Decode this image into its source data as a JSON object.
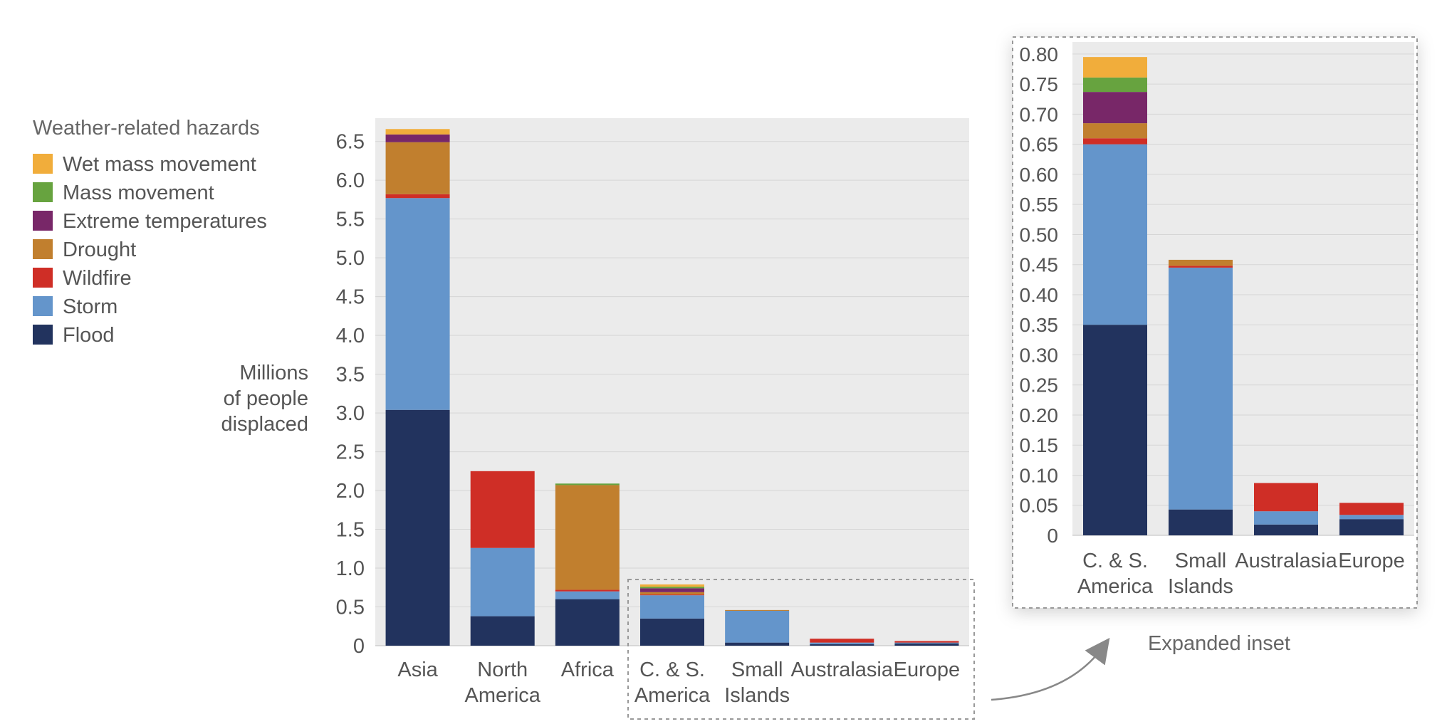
{
  "legend": {
    "title": "Weather-related hazards",
    "items": [
      {
        "label": "Wet mass movement",
        "color": "#f1ad3b"
      },
      {
        "label": "Mass movement",
        "color": "#67a33f"
      },
      {
        "label": "Extreme temperatures",
        "color": "#782768"
      },
      {
        "label": "Drought",
        "color": "#c17f2e"
      },
      {
        "label": "Wildfire",
        "color": "#cf2e26"
      },
      {
        "label": "Storm",
        "color": "#6495cb"
      },
      {
        "label": "Flood",
        "color": "#22335e"
      }
    ]
  },
  "ylabel_lines": [
    "Millions",
    "of people",
    "displaced"
  ],
  "inset_caption": "Expanded inset",
  "chart_data": [
    {
      "type": "bar",
      "stacked": true,
      "title": "",
      "ylabel": "Millions of people displaced",
      "ylim": [
        0,
        6.8
      ],
      "yticks": [
        "0",
        "0.5",
        "1.0",
        "1.5",
        "2.0",
        "2.5",
        "3.0",
        "3.5",
        "4.0",
        "4.5",
        "5.0",
        "5.5",
        "6.0",
        "6.5"
      ],
      "ytick_values": [
        0,
        0.5,
        1.0,
        1.5,
        2.0,
        2.5,
        3.0,
        3.5,
        4.0,
        4.5,
        5.0,
        5.5,
        6.0,
        6.5
      ],
      "categories": [
        [
          "Asia"
        ],
        [
          "North",
          "America"
        ],
        [
          "Africa"
        ],
        [
          "C. & S.",
          "America"
        ],
        [
          "Small",
          "Islands"
        ],
        [
          "Australasia"
        ],
        [
          "Europe"
        ]
      ],
      "grid": true,
      "series": [
        {
          "name": "Flood",
          "values": [
            3.04,
            0.38,
            0.6,
            0.35,
            0.04,
            0.02,
            0.03
          ]
        },
        {
          "name": "Storm",
          "values": [
            2.73,
            0.88,
            0.1,
            0.3,
            0.41,
            0.02,
            0.01
          ]
        },
        {
          "name": "Wildfire",
          "values": [
            0.05,
            0.99,
            0.02,
            0.01,
            0.0,
            0.05,
            0.02
          ]
        },
        {
          "name": "Drought",
          "values": [
            0.67,
            0.0,
            1.35,
            0.03,
            0.01,
            0.0,
            0.0
          ]
        },
        {
          "name": "Extreme temperatures",
          "values": [
            0.1,
            0.0,
            0.0,
            0.05,
            0.0,
            0.0,
            0.0
          ]
        },
        {
          "name": "Mass movement",
          "values": [
            0.0,
            0.0,
            0.02,
            0.02,
            0.0,
            0.0,
            0.0
          ]
        },
        {
          "name": "Wet mass movement",
          "values": [
            0.07,
            0.0,
            0.0,
            0.03,
            0.0,
            0.0,
            0.0
          ]
        }
      ]
    },
    {
      "type": "bar",
      "stacked": true,
      "title": "Expanded inset",
      "ylim": [
        0,
        0.82
      ],
      "yticks": [
        "0",
        "0.05",
        "0.10",
        "0.15",
        "0.20",
        "0.25",
        "0.30",
        "0.35",
        "0.40",
        "0.45",
        "0.50",
        "0.55",
        "0.60",
        "0.65",
        "0.70",
        "0.75",
        "0.80"
      ],
      "ytick_values": [
        0,
        0.05,
        0.1,
        0.15,
        0.2,
        0.25,
        0.3,
        0.35,
        0.4,
        0.45,
        0.5,
        0.55,
        0.6,
        0.65,
        0.7,
        0.75,
        0.8
      ],
      "categories": [
        [
          "C. & S.",
          "America"
        ],
        [
          "Small",
          "Islands"
        ],
        [
          "Australasia"
        ],
        [
          "Europe"
        ]
      ],
      "grid": true,
      "series": [
        {
          "name": "Flood",
          "values": [
            0.35,
            0.043,
            0.018,
            0.027
          ]
        },
        {
          "name": "Storm",
          "values": [
            0.3,
            0.402,
            0.022,
            0.007
          ]
        },
        {
          "name": "Wildfire",
          "values": [
            0.01,
            0.003,
            0.047,
            0.02
          ]
        },
        {
          "name": "Drought",
          "values": [
            0.025,
            0.01,
            0.0,
            0.0
          ]
        },
        {
          "name": "Extreme temperatures",
          "values": [
            0.052,
            0.0,
            0.0,
            0.0
          ]
        },
        {
          "name": "Mass movement",
          "values": [
            0.024,
            0.0,
            0.0,
            0.0
          ]
        },
        {
          "name": "Wet mass movement",
          "values": [
            0.034,
            0.0,
            0.0,
            0.0
          ]
        }
      ]
    }
  ]
}
